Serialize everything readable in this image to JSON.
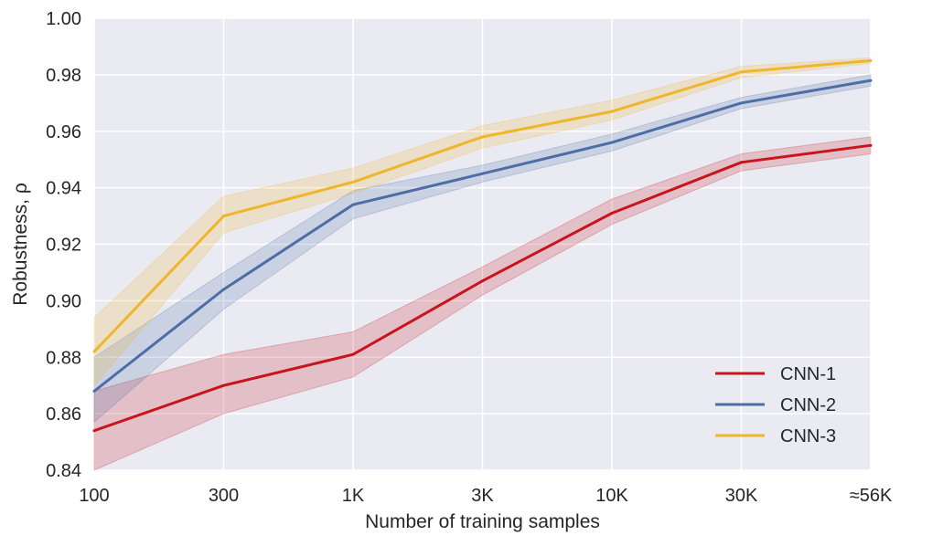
{
  "chart_data": {
    "type": "line",
    "title": "",
    "xlabel": "Number of training samples",
    "ylabel": "Robustness, ρ",
    "categories": [
      "100",
      "300",
      "1K",
      "3K",
      "10K",
      "30K",
      "≈56K"
    ],
    "ylim": [
      0.84,
      1.0
    ],
    "yticks": [
      "0.84",
      "0.86",
      "0.88",
      "0.90",
      "0.92",
      "0.94",
      "0.96",
      "0.98",
      "1.00"
    ],
    "grid": true,
    "legend_position": "bottom-right",
    "series": [
      {
        "name": "CNN-1",
        "color": "#c8141c",
        "values": [
          0.854,
          0.87,
          0.881,
          0.907,
          0.931,
          0.949,
          0.955
        ],
        "lower": [
          0.84,
          0.86,
          0.873,
          0.902,
          0.927,
          0.946,
          0.952
        ],
        "upper": [
          0.868,
          0.881,
          0.889,
          0.912,
          0.936,
          0.952,
          0.958
        ]
      },
      {
        "name": "CNN-2",
        "color": "#4c6ea5",
        "values": [
          0.868,
          0.904,
          0.934,
          0.945,
          0.956,
          0.97,
          0.978
        ],
        "lower": [
          0.857,
          0.897,
          0.929,
          0.942,
          0.953,
          0.968,
          0.976
        ],
        "upper": [
          0.88,
          0.91,
          0.939,
          0.948,
          0.959,
          0.972,
          0.98
        ]
      },
      {
        "name": "CNN-3",
        "color": "#efb62c",
        "values": [
          0.882,
          0.93,
          0.942,
          0.958,
          0.967,
          0.981,
          0.985
        ],
        "lower": [
          0.87,
          0.924,
          0.938,
          0.954,
          0.964,
          0.979,
          0.984
        ],
        "upper": [
          0.894,
          0.937,
          0.947,
          0.962,
          0.971,
          0.983,
          0.986
        ]
      }
    ]
  }
}
